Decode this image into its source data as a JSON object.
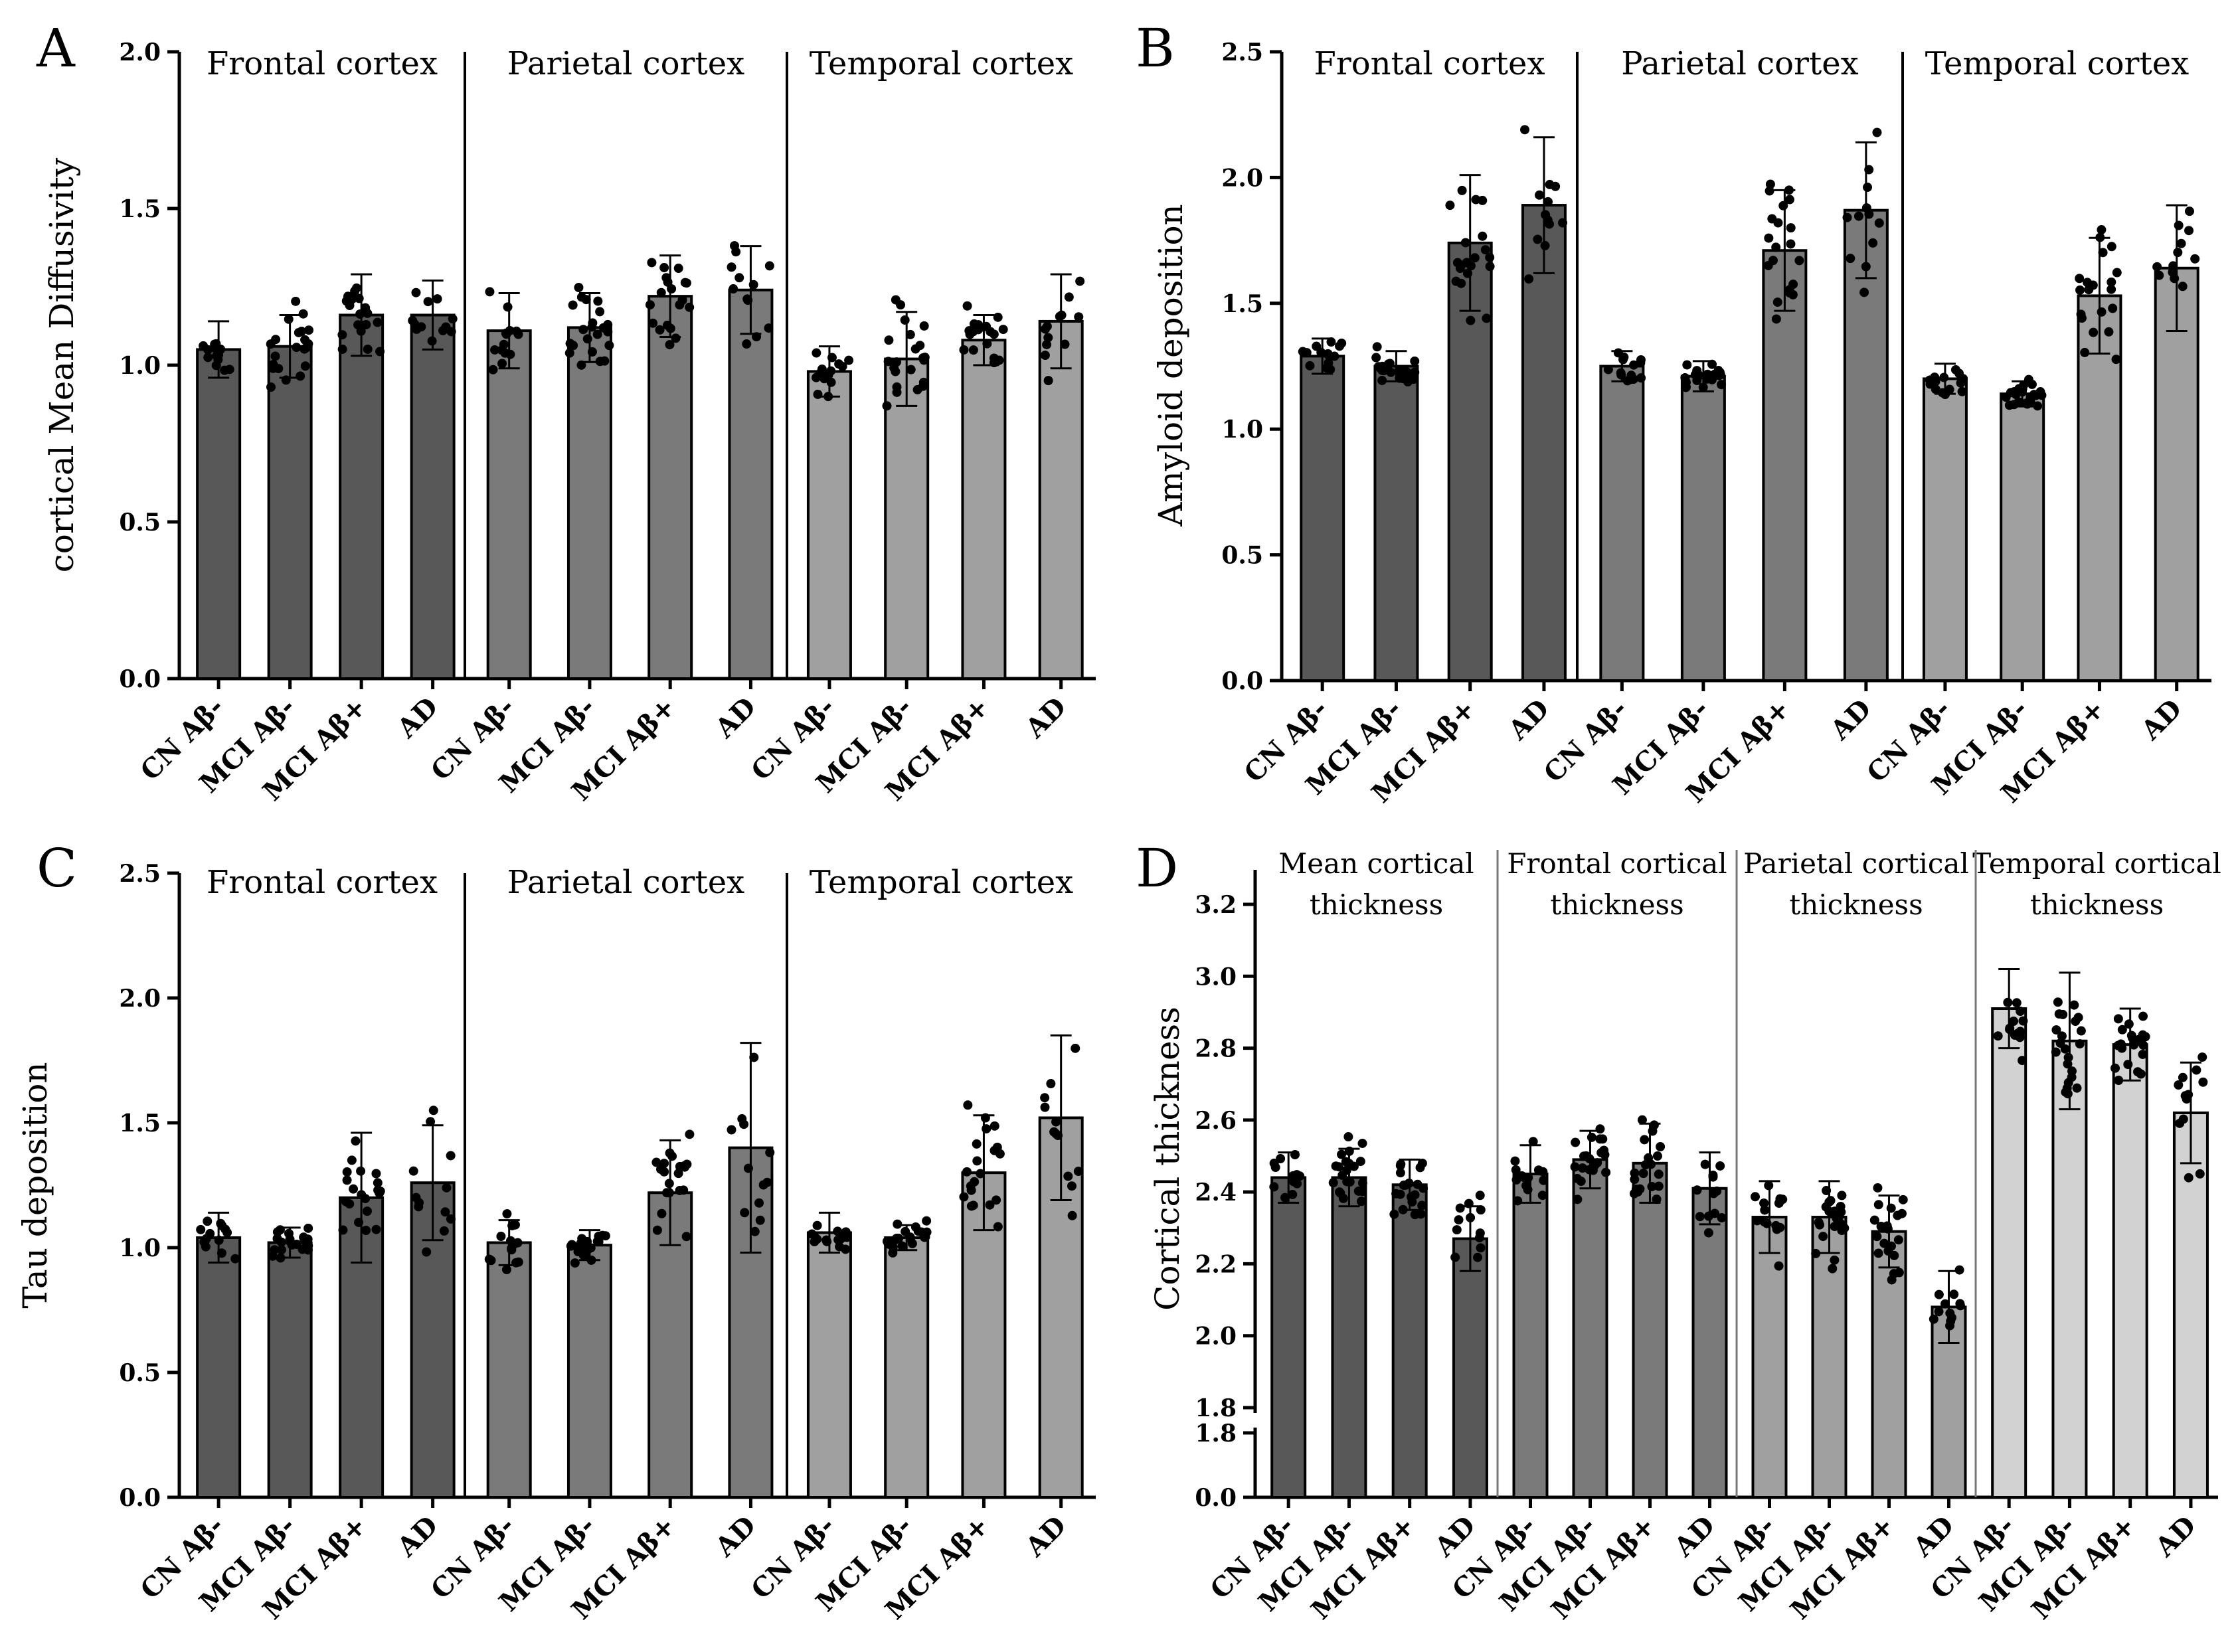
{
  "categories": [
    "CN Aβ-",
    "MCI Aβ-",
    "MCI Aβ+",
    "AD"
  ],
  "colors": {
    "frontal": "#585858",
    "parietal": "#7a7a7a",
    "temporal": "#a0a0a0",
    "temporal_light": "#d2d2d2",
    "axis": "#000000",
    "dot": "#000000"
  },
  "chart_data": [
    {
      "panel": "A",
      "type": "bar",
      "ylabel": "cortical Mean Diffusivity",
      "ylim": [
        0,
        2.0
      ],
      "yticks": [
        "0.0",
        "0.5",
        "1.0",
        "1.5",
        "2.0"
      ],
      "groups": [
        {
          "title": "Frontal cortex",
          "means": [
            1.05,
            1.06,
            1.16,
            1.16
          ],
          "sd": [
            0.09,
            0.1,
            0.13,
            0.11
          ]
        },
        {
          "title": "Parietal cortex",
          "means": [
            1.11,
            1.12,
            1.22,
            1.24
          ],
          "sd": [
            0.12,
            0.11,
            0.13,
            0.14
          ]
        },
        {
          "title": "Temporal cortex",
          "means": [
            0.98,
            1.02,
            1.08,
            1.14
          ],
          "sd": [
            0.08,
            0.15,
            0.08,
            0.15
          ]
        }
      ]
    },
    {
      "panel": "B",
      "type": "bar",
      "ylabel": "Amyloid deposition",
      "ylim": [
        0,
        2.5
      ],
      "yticks": [
        "0.0",
        "0.5",
        "1.0",
        "1.5",
        "2.0",
        "2.5"
      ],
      "groups": [
        {
          "title": "Frontal cortex",
          "means": [
            1.29,
            1.25,
            1.74,
            1.89
          ],
          "sd": [
            0.07,
            0.06,
            0.27,
            0.27
          ]
        },
        {
          "title": "Parietal cortex",
          "means": [
            1.25,
            1.21,
            1.71,
            1.87
          ],
          "sd": [
            0.06,
            0.06,
            0.24,
            0.27
          ]
        },
        {
          "title": "Temporal cortex",
          "means": [
            1.2,
            1.14,
            1.53,
            1.64
          ],
          "sd": [
            0.06,
            0.05,
            0.23,
            0.25
          ]
        }
      ]
    },
    {
      "panel": "C",
      "type": "bar",
      "ylabel": "Tau deposition",
      "ylim": [
        0,
        2.5
      ],
      "yticks": [
        "0.0",
        "0.5",
        "1.0",
        "1.5",
        "2.0",
        "2.5"
      ],
      "groups": [
        {
          "title": "Frontal cortex",
          "means": [
            1.04,
            1.02,
            1.2,
            1.26
          ],
          "sd": [
            0.1,
            0.06,
            0.26,
            0.23
          ]
        },
        {
          "title": "Parietal cortex",
          "means": [
            1.02,
            1.01,
            1.22,
            1.4
          ],
          "sd": [
            0.09,
            0.06,
            0.21,
            0.42
          ]
        },
        {
          "title": "Temporal cortex",
          "means": [
            1.06,
            1.04,
            1.3,
            1.52
          ],
          "sd": [
            0.08,
            0.05,
            0.23,
            0.33
          ]
        }
      ]
    },
    {
      "panel": "D",
      "type": "bar",
      "ylabel": "Cortical thickness",
      "ylim": [
        0,
        3.2
      ],
      "axis_break": [
        0,
        1.8
      ],
      "yticks_upper": [
        "1.8",
        "2.0",
        "2.2",
        "2.4",
        "2.6",
        "2.8",
        "3.0",
        "3.2"
      ],
      "yticks_lower": [
        "0.0",
        "1.8"
      ],
      "groups": [
        {
          "title_lines": [
            "Mean cortical",
            "thickness"
          ],
          "means": [
            2.44,
            2.44,
            2.42,
            2.27
          ],
          "sd": [
            0.07,
            0.08,
            0.07,
            0.09
          ]
        },
        {
          "title_lines": [
            "Frontal cortical",
            "thickness"
          ],
          "means": [
            2.45,
            2.49,
            2.48,
            2.41
          ],
          "sd": [
            0.08,
            0.08,
            0.11,
            0.1
          ]
        },
        {
          "title_lines": [
            "Parietal cortical",
            "thickness"
          ],
          "means": [
            2.33,
            2.33,
            2.29,
            2.08
          ],
          "sd": [
            0.1,
            0.1,
            0.1,
            0.1
          ]
        },
        {
          "title_lines": [
            "Temporal cortical",
            "thickness"
          ],
          "means": [
            2.91,
            2.82,
            2.81,
            2.62
          ],
          "sd": [
            0.11,
            0.19,
            0.1,
            0.14
          ]
        }
      ]
    }
  ]
}
